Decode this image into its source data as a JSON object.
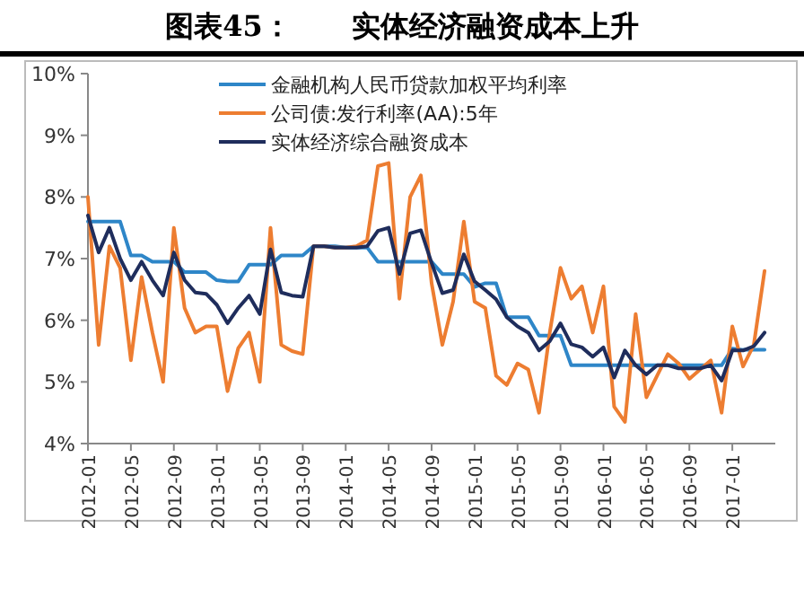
{
  "chart_data": {
    "type": "line",
    "title": "图表45：      实体经济融资成本上升",
    "categories": [
      "2012-01",
      null,
      null,
      null,
      "2012-05",
      null,
      null,
      null,
      "2012-09",
      null,
      null,
      null,
      "2013-01",
      null,
      null,
      null,
      "2013-05",
      null,
      null,
      null,
      "2013-09",
      null,
      null,
      null,
      "2014-01",
      null,
      null,
      null,
      "2014-05",
      null,
      null,
      null,
      "2014-09",
      null,
      null,
      null,
      "2015-01",
      null,
      null,
      null,
      "2015-05",
      null,
      null,
      null,
      "2015-09",
      null,
      null,
      null,
      "2016-01",
      null,
      null,
      null,
      "2016-05",
      null,
      null,
      null,
      "2016-09",
      null,
      null,
      null,
      "2017-01",
      null,
      null,
      null
    ],
    "series": [
      {
        "name": "金融机构人民币贷款加权平均利率",
        "color": "#2e86c8",
        "values": [
          7.6,
          7.6,
          7.6,
          7.6,
          7.05,
          7.05,
          6.95,
          6.95,
          6.95,
          6.78,
          6.78,
          6.78,
          6.65,
          6.63,
          6.63,
          6.9,
          6.9,
          6.9,
          7.05,
          7.05,
          7.05,
          7.2,
          7.2,
          7.2,
          7.18,
          7.18,
          7.18,
          6.95,
          6.95,
          6.95,
          6.95,
          6.95,
          6.95,
          6.75,
          6.75,
          6.75,
          6.54,
          6.6,
          6.6,
          6.05,
          6.05,
          6.05,
          5.75,
          5.75,
          5.75,
          5.27,
          5.27,
          5.27,
          5.27,
          5.27,
          5.27,
          5.27,
          5.27,
          5.27,
          5.27,
          5.27,
          5.27,
          5.27,
          5.27,
          5.27,
          5.54,
          5.52,
          5.52,
          5.52
        ]
      },
      {
        "name": "公司债:发行利率(AA):5年",
        "color": "#ed7d31",
        "values": [
          8.0,
          5.6,
          7.2,
          6.85,
          5.35,
          6.7,
          5.8,
          5.0,
          7.5,
          6.2,
          5.8,
          5.9,
          5.9,
          4.85,
          5.55,
          5.8,
          5.0,
          7.5,
          5.6,
          5.5,
          5.45,
          7.2,
          7.2,
          7.18,
          7.18,
          7.2,
          7.3,
          8.5,
          8.55,
          6.35,
          8.0,
          8.35,
          6.6,
          5.6,
          6.3,
          7.6,
          6.3,
          6.2,
          5.1,
          4.95,
          5.3,
          5.2,
          4.5,
          5.8,
          6.85,
          6.35,
          6.55,
          5.8,
          6.55,
          4.6,
          4.35,
          6.1,
          4.75,
          5.1,
          5.45,
          5.3,
          5.05,
          5.2,
          5.35,
          4.5,
          5.9,
          5.25,
          5.6,
          6.8
        ]
      },
      {
        "name": "实体经济综合融资成本",
        "color": "#1f2d5c",
        "values": [
          7.7,
          7.1,
          7.5,
          7.0,
          6.65,
          6.95,
          6.65,
          6.4,
          7.1,
          6.65,
          6.45,
          6.43,
          6.25,
          5.95,
          6.2,
          6.4,
          6.1,
          7.15,
          6.45,
          6.4,
          6.38,
          7.2,
          7.2,
          7.18,
          7.18,
          7.18,
          7.2,
          7.45,
          7.5,
          6.75,
          7.41,
          7.46,
          6.93,
          6.44,
          6.49,
          7.07,
          6.63,
          6.49,
          6.34,
          6.05,
          5.9,
          5.8,
          5.51,
          5.66,
          5.95,
          5.61,
          5.56,
          5.41,
          5.56,
          5.07,
          5.51,
          5.27,
          5.12,
          5.27,
          5.27,
          5.22,
          5.22,
          5.22,
          5.27,
          5.02,
          5.51,
          5.51,
          5.58,
          5.8
        ]
      }
    ],
    "ylim": [
      4,
      10
    ],
    "yticks": [
      {
        "value": 4,
        "label": "4%"
      },
      {
        "value": 5,
        "label": "5%"
      },
      {
        "value": 6,
        "label": "6%"
      },
      {
        "value": 7,
        "label": "7%"
      },
      {
        "value": 8,
        "label": "8%"
      },
      {
        "value": 9,
        "label": "9%"
      },
      {
        "value": 10,
        "label": "10%"
      }
    ],
    "legend": "top",
    "grid": false,
    "marker": "none",
    "line_style": "solid"
  }
}
